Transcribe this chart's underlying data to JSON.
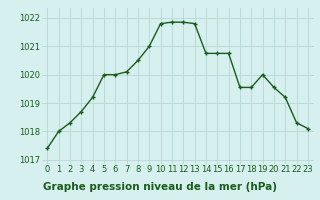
{
  "x": [
    0,
    1,
    2,
    3,
    4,
    5,
    6,
    7,
    8,
    9,
    10,
    11,
    12,
    13,
    14,
    15,
    16,
    17,
    18,
    19,
    20,
    21,
    22,
    23
  ],
  "y": [
    1017.4,
    1018.0,
    1018.3,
    1018.7,
    1019.2,
    1020.0,
    1020.0,
    1020.1,
    1020.5,
    1021.0,
    1021.8,
    1021.85,
    1021.85,
    1021.8,
    1020.75,
    1020.75,
    1020.75,
    1019.55,
    1019.55,
    1020.0,
    1019.55,
    1019.2,
    1018.3,
    1018.1
  ],
  "line_color": "#1a5c1a",
  "marker": "+",
  "marker_size": 3,
  "bg_color": "#d6f0ef",
  "grid_color": "#b8d8d4",
  "xlabel": "Graphe pression niveau de la mer (hPa)",
  "xlabel_color": "#1a5c1a",
  "xlabel_bg": "#7db87d",
  "ylabel_ticks": [
    1017,
    1018,
    1019,
    1020,
    1021,
    1022
  ],
  "xlim": [
    -0.5,
    23.5
  ],
  "ylim": [
    1016.85,
    1022.35
  ],
  "xtick_labels": [
    "0",
    "1",
    "2",
    "3",
    "4",
    "5",
    "6",
    "7",
    "8",
    "9",
    "10",
    "11",
    "12",
    "13",
    "14",
    "15",
    "16",
    "17",
    "18",
    "19",
    "20",
    "21",
    "22",
    "23"
  ],
  "tick_fontsize": 6,
  "xlabel_fontsize": 7.5,
  "line_width": 1.0
}
